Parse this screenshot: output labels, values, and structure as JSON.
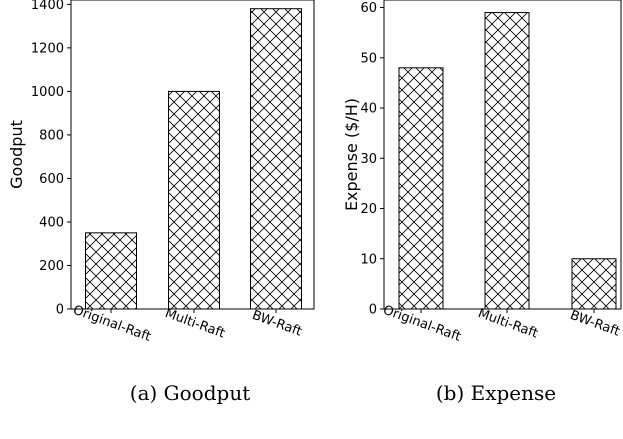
{
  "chart_data": [
    {
      "type": "bar",
      "categories": [
        "Original-Raft",
        "Multi-Raft",
        "BW-Raft"
      ],
      "values": [
        350,
        1000,
        1380
      ],
      "ylabel": "Goodput",
      "xlabel": "",
      "ylim": [
        0,
        1420
      ],
      "yticks": [
        0,
        200,
        400,
        600,
        800,
        1000,
        1200,
        1400
      ],
      "caption": "(a) Goodput",
      "bar_fill": "#ffffff",
      "bar_hatch": "cross-hatch",
      "bar_edge": "#000000",
      "grid": false
    },
    {
      "type": "bar",
      "categories": [
        "Original-Raft",
        "Multi-Raft",
        "BW-Raft"
      ],
      "values": [
        48,
        59,
        10
      ],
      "ylabel": "Expense ($/H)",
      "xlabel": "",
      "ylim": [
        0,
        61.5
      ],
      "yticks": [
        0,
        10,
        20,
        30,
        40,
        50,
        60
      ],
      "caption": "(b) Expense",
      "bar_fill": "#ffffff",
      "bar_hatch": "cross-hatch",
      "bar_edge": "#000000",
      "grid": false
    }
  ]
}
